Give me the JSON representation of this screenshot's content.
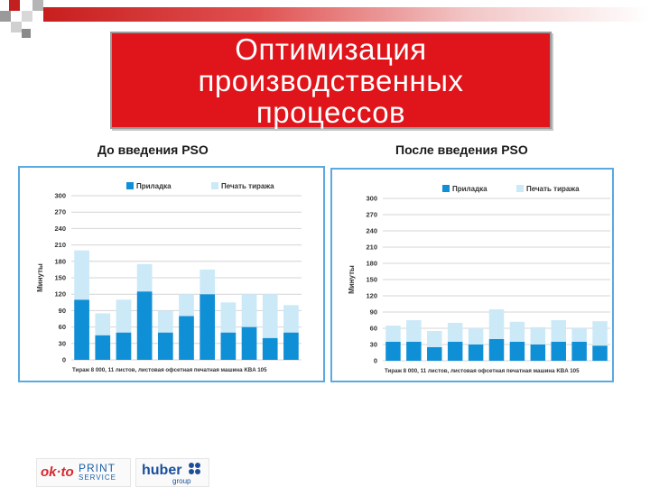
{
  "slide": {
    "title": "Оптимизация\nпроизводственных\nпроцессов",
    "colors": {
      "title_bg": "#e0141b",
      "primary": "#0f8fd6",
      "secondary": "#cce9f8",
      "frame": "#5aa9df"
    }
  },
  "logos": {
    "left": {
      "part1": "ok·to",
      "part2": "PRINT",
      "part3": "SERVICE"
    },
    "right": {
      "part1": "huber",
      "part2": "group"
    }
  },
  "chart_data": [
    {
      "type": "bar",
      "caption": "До введения PSO",
      "stacked": true,
      "ylabel": "Минуты",
      "xlabel": "Тираж 8 000, 11 листов, листовая офсетная печатная машина KBA 105",
      "ylim": [
        0,
        300
      ],
      "yticks": [
        0,
        30,
        60,
        90,
        120,
        150,
        180,
        210,
        240,
        270,
        300
      ],
      "grid": true,
      "legend_position": "top",
      "series": [
        {
          "name": "Приладка",
          "color": "#0f8fd6",
          "values": [
            110,
            45,
            50,
            125,
            50,
            80,
            120,
            50,
            60,
            40,
            50
          ]
        },
        {
          "name": "Печать тиража",
          "color": "#cce9f8",
          "values": [
            90,
            40,
            60,
            50,
            40,
            40,
            45,
            55,
            60,
            80,
            50
          ]
        }
      ]
    },
    {
      "type": "bar",
      "caption": "После введения PSO",
      "stacked": true,
      "ylabel": "Минуты",
      "xlabel": "Тираж 8 000, 11 листов, листовая офсетная печатная машина KBA 105",
      "ylim": [
        0,
        300
      ],
      "yticks": [
        0,
        30,
        60,
        90,
        120,
        150,
        180,
        210,
        240,
        270,
        300
      ],
      "grid": true,
      "legend_position": "top",
      "series": [
        {
          "name": "Приладка",
          "color": "#0f8fd6",
          "values": [
            35,
            35,
            25,
            35,
            30,
            40,
            35,
            30,
            35,
            35,
            28
          ]
        },
        {
          "name": "Печать тиража",
          "color": "#cce9f8",
          "values": [
            30,
            40,
            30,
            35,
            30,
            55,
            37,
            32,
            40,
            25,
            45
          ]
        }
      ]
    }
  ]
}
